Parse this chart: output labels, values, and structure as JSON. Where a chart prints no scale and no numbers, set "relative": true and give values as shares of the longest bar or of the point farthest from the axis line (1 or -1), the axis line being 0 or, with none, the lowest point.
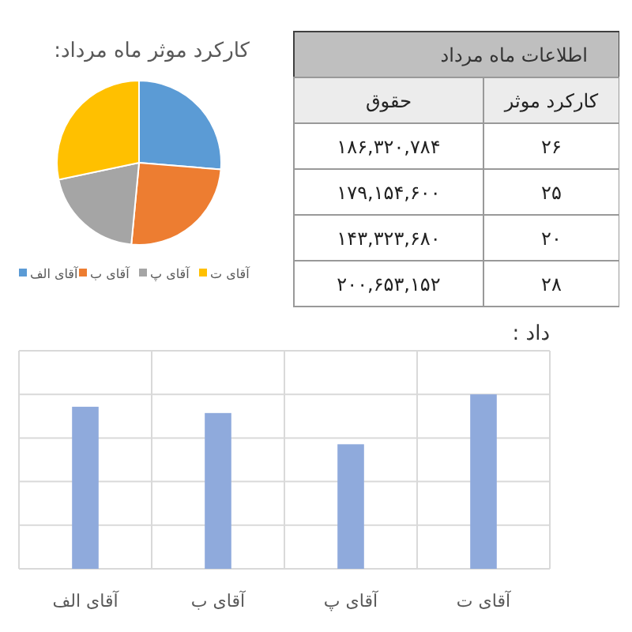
{
  "chart_data": [
    {
      "type": "pie",
      "title": "کارکرد موثر ماه مرداد:",
      "categories": [
        "آقای الف",
        "آقای ب",
        "آقای پ",
        "آقای ت"
      ],
      "values": [
        26.3,
        25.2,
        20.2,
        28.3
      ],
      "colors": [
        "#5b9bd5",
        "#ed7d31",
        "#a5a5a5",
        "#ffc000"
      ],
      "legend": "bottom"
    },
    {
      "type": "other",
      "title": "اطلاعات ماه مرداد",
      "annotations": [
        "حقوق",
        "کارکرد موثر",
        "۱۸۶,۳۲۰,۷۸۴",
        "۲۶",
        "۱۷۹,۱۵۴,۶۰۰",
        "۲۵",
        "۱۴۳,۳۲۳,۶۸۰",
        "۲۰",
        "۲۰۰,۶۵۳,۱۵۲",
        "۲۸"
      ]
    },
    {
      "type": "bar",
      "title": "داد :",
      "categories": [
        "آقای الف",
        "آقای ب",
        "آقای پ",
        "آقای ت"
      ],
      "values": [
        0.929,
        0.893,
        0.714,
        1
      ],
      "color": "#8faadc",
      "relative": true,
      "grid": true
    }
  ]
}
